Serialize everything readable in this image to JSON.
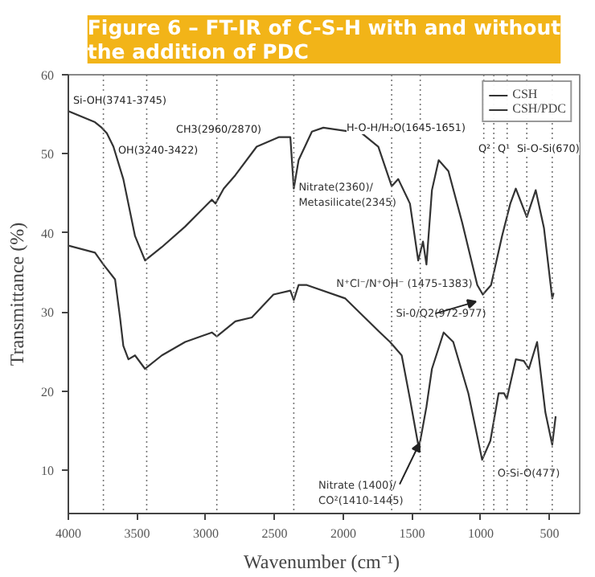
{
  "chart_data": {
    "type": "line",
    "title": "Figure 6 – FT-IR of C-S-H with and without\nthe addition of PDC",
    "xlabel": "Wavenumber  (cm⁻¹)",
    "ylabel": "Transmittance (%)",
    "xlim": [
      4000,
      280
    ],
    "ylim": [
      4.5,
      60
    ],
    "xticks": [
      4000,
      3500,
      3000,
      2500,
      2000,
      1500,
      1000,
      500
    ],
    "yticks": [
      10,
      20,
      30,
      40,
      50,
      60
    ],
    "legend": "top right",
    "series": [
      {
        "name": "CSH",
        "color": "#333333",
        "x": [
          4000,
          3806,
          3757,
          3720,
          3672,
          3600,
          3515,
          3442,
          3320,
          3150,
          2956,
          2930,
          2870,
          2785,
          2630,
          2470,
          2385,
          2360,
          2325,
          2228,
          2145,
          1865,
          1745,
          1648,
          1600,
          1515,
          1455,
          1420,
          1395,
          1355,
          1306,
          1235,
          1135,
          1025,
          985,
          925,
          845,
          785,
          745,
          665,
          600,
          540,
          480,
          470
        ],
        "values": [
          55.4,
          54.0,
          53.3,
          52.6,
          50.9,
          46.8,
          39.6,
          36.5,
          38.2,
          40.8,
          44.2,
          43.7,
          45.6,
          47.3,
          50.9,
          52.1,
          52.1,
          45.6,
          49.2,
          52.8,
          53.3,
          52.6,
          50.9,
          45.9,
          46.8,
          43.7,
          36.5,
          38.9,
          36.0,
          45.4,
          49.2,
          47.8,
          41.3,
          33.4,
          32.2,
          33.4,
          39.6,
          43.7,
          45.6,
          42.0,
          45.4,
          40.6,
          31.7,
          32.4
        ]
      },
      {
        "name": "CSH/PDC",
        "color": "#333333",
        "x": [
          4000,
          3806,
          3745,
          3660,
          3624,
          3600,
          3563,
          3515,
          3442,
          3320,
          3150,
          2956,
          2920,
          2785,
          2665,
          2508,
          2385,
          2360,
          2325,
          2265,
          1985,
          1745,
          1660,
          1575,
          1515,
          1455,
          1440,
          1395,
          1355,
          1270,
          1200,
          1090,
          990,
          930,
          870,
          830,
          810,
          745,
          687,
          650,
          590,
          530,
          480,
          455
        ],
        "values": [
          38.4,
          37.5,
          36.0,
          34.1,
          29.3,
          25.7,
          24.0,
          24.5,
          22.8,
          24.5,
          26.2,
          27.4,
          26.9,
          28.8,
          29.3,
          32.2,
          32.7,
          31.5,
          33.4,
          33.4,
          31.7,
          27.6,
          26.2,
          24.5,
          19.0,
          13.2,
          13.7,
          18.0,
          22.8,
          27.4,
          26.2,
          19.7,
          11.3,
          13.7,
          19.7,
          19.7,
          19.0,
          24.0,
          23.8,
          22.8,
          26.2,
          17.3,
          13.2,
          16.8
        ]
      }
    ],
    "ref_lines": [
      {
        "axis": "x",
        "value": 3745,
        "line_style": "dotted"
      },
      {
        "axis": "x",
        "value": 3430,
        "line_style": "dotted"
      },
      {
        "axis": "x",
        "value": 2920,
        "line_style": "dotted"
      },
      {
        "axis": "x",
        "value": 2360,
        "line_style": "dotted"
      },
      {
        "axis": "x",
        "value": 1648,
        "line_style": "dotted"
      },
      {
        "axis": "x",
        "value": 1440,
        "line_style": "dotted"
      },
      {
        "axis": "x",
        "value": 978,
        "line_style": "dotted"
      },
      {
        "axis": "x",
        "value": 905,
        "line_style": "dotted"
      },
      {
        "axis": "x",
        "value": 808,
        "line_style": "dotted"
      },
      {
        "axis": "x",
        "value": 665,
        "line_style": "dotted"
      },
      {
        "axis": "x",
        "value": 480,
        "line_style": "dotted"
      }
    ],
    "annotations": [
      "Si-OH(3741-3745)",
      "OH(3240-3422)",
      "CH3(2960/2870)",
      {
        "text": "Nitrate(2360)/\nMetasilicate(2345)",
        "x": 2360,
        "y": 45.6
      },
      "H-O-H/H₂O(1645-1651)",
      "Q²",
      "Q¹",
      "Si-O-Si(670)",
      {
        "text": "N⁺Cl⁻/N⁺OH⁻ (1475-1383)",
        "x": 1395,
        "y": 36.0
      },
      {
        "text": "Si-0/Q2(972-977)",
        "x": 985,
        "y": 32.2
      },
      {
        "text": "Nitrate (1400)/\nCO²(1410-1445)",
        "x": 1455,
        "y": 13.2
      },
      {
        "text": "O-Si-O(477)",
        "x": 480,
        "y": 13.2
      }
    ]
  }
}
